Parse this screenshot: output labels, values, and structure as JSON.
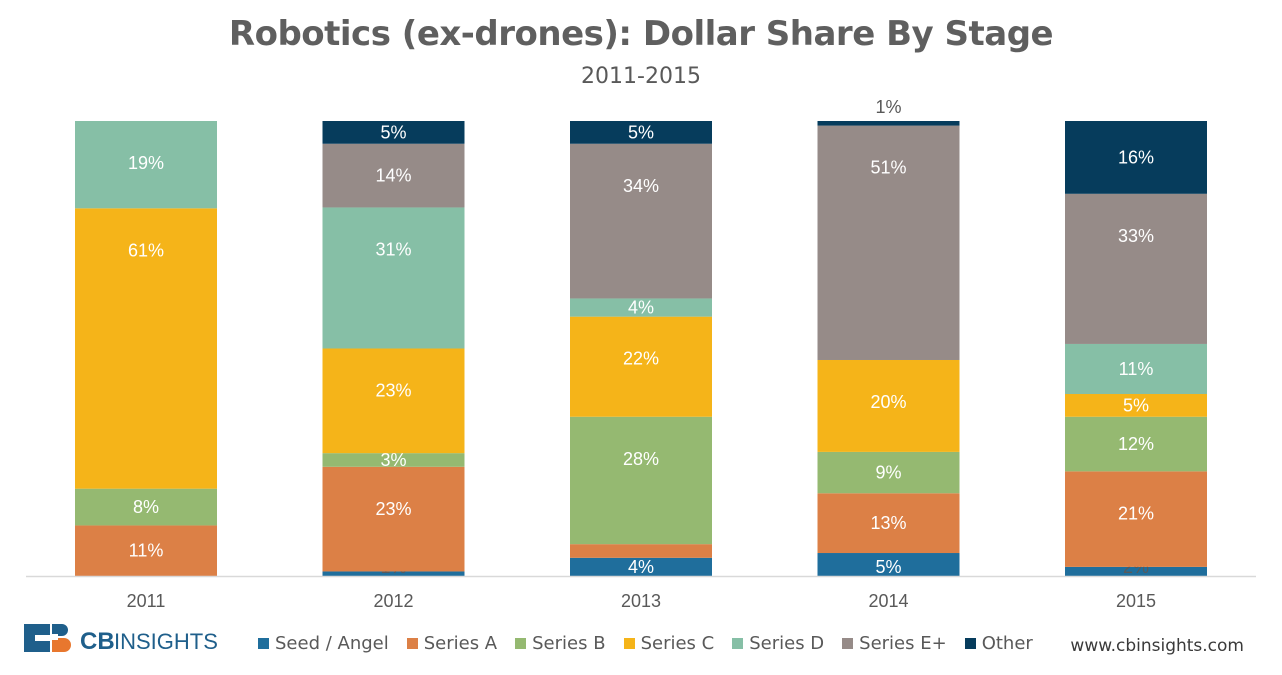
{
  "brand": {
    "logo_text": "CB INSIGHTS",
    "website": "www.cbinsights.com"
  },
  "chart_data": {
    "type": "bar",
    "stacked": true,
    "title": "Robotics (ex-drones): Dollar Share By Stage",
    "subtitle": "2011-2015",
    "categories": [
      "2011",
      "2012",
      "2013",
      "2014",
      "2015"
    ],
    "ylim": [
      0,
      100
    ],
    "grid": false,
    "legend_position": "bottom",
    "series": [
      {
        "name": "Seed / Angel",
        "color": "#1f6e9c",
        "values": [
          0,
          1,
          4,
          5,
          2
        ],
        "labels": [
          "",
          "1%",
          "4%",
          "5%",
          "2%"
        ]
      },
      {
        "name": "Series A",
        "color": "#dc8046",
        "values": [
          11,
          23,
          3,
          13,
          21
        ],
        "labels": [
          "11%",
          "23%",
          "",
          "13%",
          "21%"
        ]
      },
      {
        "name": "Series B",
        "color": "#95b971",
        "values": [
          8,
          3,
          28,
          9,
          12
        ],
        "labels": [
          "8%",
          "3%",
          "28%",
          "9%",
          "12%"
        ]
      },
      {
        "name": "Series C",
        "color": "#f5b419",
        "values": [
          61,
          23,
          22,
          20,
          5
        ],
        "labels": [
          "61%",
          "23%",
          "22%",
          "20%",
          "5%"
        ]
      },
      {
        "name": "Series D",
        "color": "#86bfa6",
        "values": [
          19,
          31,
          4,
          0,
          11
        ],
        "labels": [
          "19%",
          "31%",
          "4%",
          "",
          "11%"
        ]
      },
      {
        "name": "Series E+",
        "color": "#968b88",
        "values": [
          0,
          14,
          34,
          51,
          33
        ],
        "labels": [
          "",
          "14%",
          "34%",
          "51%",
          "33%"
        ]
      },
      {
        "name": "Other",
        "color": "#063c5c",
        "values": [
          0,
          5,
          5,
          1,
          16
        ],
        "labels": [
          "",
          "5%",
          "5%",
          "1%",
          "16%"
        ]
      }
    ]
  }
}
